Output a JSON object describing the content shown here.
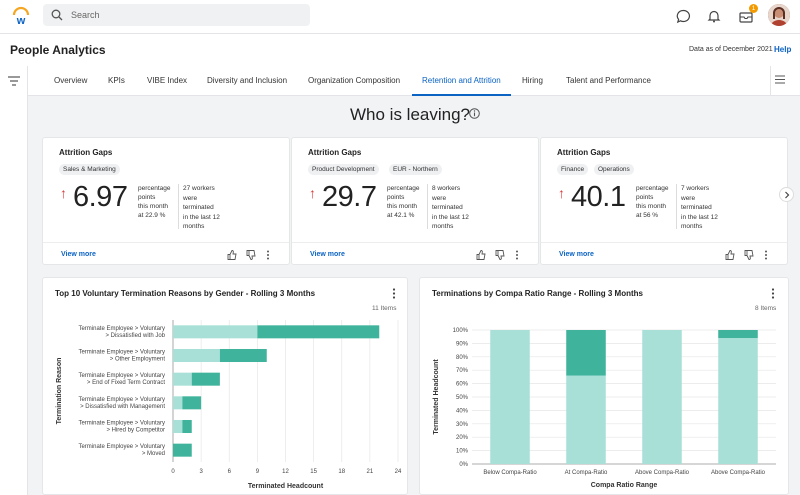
{
  "search": {
    "placeholder": "Search"
  },
  "notifications": {
    "inbox_count": "1"
  },
  "header": {
    "title": "People Analytics",
    "data_as_of": "Data as of December 2021",
    "help": "Help"
  },
  "tabs": [
    {
      "label": "Overview"
    },
    {
      "label": "KPIs"
    },
    {
      "label": "VIBE Index"
    },
    {
      "label": "Diversity and Inclusion"
    },
    {
      "label": "Organization Composition"
    },
    {
      "label": "Retention and Attrition"
    },
    {
      "label": "Hiring"
    },
    {
      "label": "Talent and Performance"
    }
  ],
  "active_tab": "Retention and Attrition",
  "section": {
    "title": "Who is leaving?"
  },
  "cards": [
    {
      "title": "Attrition Gaps",
      "chips": [
        "Sales & Marketing"
      ],
      "value": "6.97",
      "unit_l1": "percentage",
      "unit_l2": "points",
      "unit_l3": "this month",
      "unit_l4": "at 22.9 %",
      "workers_l1": "27 workers",
      "workers_l2": "were",
      "workers_l3": "terminated",
      "workers_l4": "in the last 12",
      "workers_l5": "months",
      "view_more": "View more"
    },
    {
      "title": "Attrition Gaps",
      "chips": [
        "Product Development",
        "EUR - Northern"
      ],
      "value": "29.7",
      "unit_l1": "percentage",
      "unit_l2": "points",
      "unit_l3": "this month",
      "unit_l4": "at 42.1 %",
      "workers_l1": "8 workers",
      "workers_l2": "were",
      "workers_l3": "terminated",
      "workers_l4": "in the last 12",
      "workers_l5": "months",
      "view_more": "View more"
    },
    {
      "title": "Attrition Gaps",
      "chips": [
        "Finance",
        "Operations"
      ],
      "value": "40.1",
      "unit_l1": "percentage",
      "unit_l2": "points",
      "unit_l3": "this month",
      "unit_l4": "at 56 %",
      "workers_l1": "7 workers",
      "workers_l2": "were",
      "workers_l3": "terminated",
      "workers_l4": "in the last 12",
      "workers_l5": "months",
      "view_more": "View more"
    }
  ],
  "colors": {
    "accent": "#0b63c4",
    "bar_light": "#a8e0d8",
    "bar_dark": "#3fb39b",
    "up_arrow": "#d93a3a"
  },
  "panels": [
    {
      "title": "Top 10 Voluntary Termination Reasons by Gender - Rolling 3 Months",
      "count": "11 Items"
    },
    {
      "title": "Terminations by Compa Ratio Range - Rolling 3 Months",
      "count": "8 Items"
    }
  ],
  "chart_data": [
    {
      "type": "bar",
      "orientation": "horizontal",
      "stacked": true,
      "categories": [
        [
          "Terminate Employee > Voluntary",
          "> Dissatisfied with Job"
        ],
        [
          "Terminate Employee > Voluntary",
          "> Other Employment"
        ],
        [
          "Terminate Employee > Voluntary",
          "> End of Fixed Term Contract"
        ],
        [
          "Terminate Employee > Voluntary",
          "> Dissatisfied with Management"
        ],
        [
          "Terminate Employee > Voluntary",
          "> Hired by Competitor"
        ],
        [
          "Terminate Employee > Voluntary",
          "> Moved"
        ]
      ],
      "series": [
        {
          "values": [
            9,
            5,
            2,
            1,
            1,
            0
          ]
        },
        {
          "values": [
            13,
            5,
            3,
            2,
            1,
            2
          ]
        }
      ],
      "xlabel": "Terminated Headcount",
      "ylabel": "Termination Reason",
      "xticks": [
        "0",
        "3",
        "6",
        "9",
        "12",
        "15",
        "18",
        "21",
        "24"
      ],
      "xlim": [
        0,
        24
      ],
      "grid": true
    },
    {
      "type": "bar",
      "orientation": "vertical",
      "stacked": true,
      "percent": true,
      "categories": [
        "Below Compa-Ratio",
        "At Compa-Ratio",
        "Above Compa-Ratio",
        "Above Compa-Ratio"
      ],
      "series": [
        {
          "values": [
            100,
            66,
            100,
            94
          ]
        },
        {
          "values": [
            0,
            34,
            0,
            6
          ]
        }
      ],
      "xlabel": "Compa Ratio Range",
      "ylabel": "Terminated Headcount",
      "yticks": [
        "0%",
        "10%",
        "20%",
        "30%",
        "40%",
        "50%",
        "60%",
        "70%",
        "80%",
        "90%",
        "100%"
      ],
      "ylim": [
        0,
        100
      ],
      "grid": true
    }
  ]
}
